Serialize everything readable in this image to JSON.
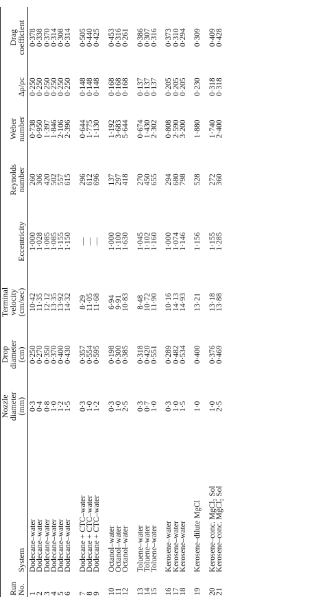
{
  "columns": [
    {
      "line1": "Run",
      "line2": "No."
    },
    {
      "line1": "",
      "line2": "System"
    },
    {
      "line1": "Nozzle",
      "line2": "diameter",
      "line3": "(mm)"
    },
    {
      "line1": "Drop",
      "line2": "diameter",
      "line3": "(cm)"
    },
    {
      "line1": "Terminal",
      "line2": "velocity",
      "line3": "(cm/sec)"
    },
    {
      "line1": "",
      "line2": "Eccentricity"
    },
    {
      "line1": "Reynolds",
      "line2": "number"
    },
    {
      "line1": "Weber",
      "line2": "number"
    },
    {
      "line1": "",
      "line2": "Δρ/ρc"
    },
    {
      "line1": "Drag",
      "line2": "coefficient"
    }
  ],
  "groups": [
    {
      "rows": [
        {
          "run": "1",
          "system": "Dodecane–water",
          "nozzle": "0·3",
          "drop": "0·250",
          "velocity": "10·42",
          "ecc": "1·000",
          "re": "260",
          "we": "0·738",
          "drho": "0·250",
          "cd": "0·378"
        },
        {
          "run": "2",
          "system": "Dodecane–water",
          "nozzle": "0·4",
          "drop": "0·270",
          "velocity": "11·35",
          "ecc": "1·028",
          "re": "306",
          "we": "0·950",
          "drho": "0·250",
          "cd": "0·338"
        },
        {
          "run": "3",
          "system": "Dodecane–water",
          "nozzle": "0·8",
          "drop": "0·350",
          "velocity": "12·12",
          "ecc": "1·085",
          "re": "420",
          "we": "1·397",
          "drho": "0·250",
          "cd": "0·370"
        },
        {
          "run": "4",
          "system": "Dodecane–water",
          "nozzle": "1·0",
          "drop": "0·370",
          "velocity": "13·35",
          "ecc": "1·085",
          "re": "502",
          "we": "1·846",
          "drho": "0·250",
          "cd": "0·314"
        },
        {
          "run": "5",
          "system": "Dodecane–water",
          "nozzle": "1·2",
          "drop": "0·400",
          "velocity": "13·92",
          "ecc": "1·155",
          "re": "557",
          "we": "2·106",
          "drho": "0·250",
          "cd": "0·308"
        },
        {
          "run": "6",
          "system": "Dodecane–water",
          "nozzle": "1·5",
          "drop": "0·430",
          "velocity": "14·32",
          "ecc": "1·150",
          "re": "615",
          "we": "2·396",
          "drho": "0·250",
          "cd": "0·314"
        }
      ]
    },
    {
      "rows": [
        {
          "run": "7",
          "system": "Dodecane + CTC–water",
          "nozzle": "0·3",
          "drop": "0·357",
          "velocity": "8·29",
          "ecc": "—",
          "re": "296",
          "we": "0·644",
          "drho": "0·148",
          "cd": "0·505"
        },
        {
          "run": "8",
          "system": "Dodecane + CTC–water",
          "nozzle": "1·0",
          "drop": "0·554",
          "velocity": "11·05",
          "ecc": "—",
          "re": "612",
          "we": "1·775",
          "drho": "0·148",
          "cd": "0·440"
        },
        {
          "run": "9",
          "system": "Dodecane + CTC–water",
          "nozzle": "1·2",
          "drop": "0·595",
          "velocity": "11·68",
          "ecc": "—",
          "re": "696",
          "we": "1·130",
          "drho": "0·148",
          "cd": "0·425"
        }
      ]
    },
    {
      "rows": [
        {
          "run": "10",
          "system": "Octanol–water",
          "nozzle": "0·3",
          "drop": "0·198",
          "velocity": "6·94",
          "ecc": "1·000",
          "re": "137",
          "we": "1·192",
          "drho": "0·168",
          "cd": "0·453"
        },
        {
          "run": "11",
          "system": "Octanol–water",
          "nozzle": "1·0",
          "drop": "0·300",
          "velocity": "9·91",
          "ecc": "1·100",
          "re": "297",
          "we": "3·683",
          "drho": "0·168",
          "cd": "0·316"
        },
        {
          "run": "12",
          "system": "Octanol–water",
          "nozzle": "2·5",
          "drop": "0·385",
          "velocity": "10·83",
          "ecc": "1·630",
          "re": "418",
          "we": "5·644",
          "drho": "0·168",
          "cd": "0·261"
        }
      ]
    },
    {
      "rows": [
        {
          "run": "13",
          "system": "Toluene–water",
          "nozzle": "0·3",
          "drop": "0·318",
          "velocity": "8·48",
          "ecc": "1·045",
          "re": "270",
          "we": "0·674",
          "drho": "0·137",
          "cd": "0·386"
        },
        {
          "run": "14",
          "system": "Toluene–water",
          "nozzle": "0·7",
          "drop": "0·420",
          "velocity": "10·72",
          "ecc": "1·102",
          "re": "450",
          "we": "1·430",
          "drho": "0·137",
          "cd": "0·307"
        },
        {
          "run": "15",
          "system": "Toluene–water",
          "nozzle": "1·0",
          "drop": "0·551",
          "velocity": "11·90",
          "ecc": "1·160",
          "re": "655",
          "we": "2·302",
          "drho": "0·137",
          "cd": "0·316"
        }
      ]
    },
    {
      "rows": [
        {
          "run": "16",
          "system": "Kerosene–water",
          "nozzle": "0·3",
          "drop": "0·289",
          "velocity": "10·16",
          "ecc": "1·000",
          "re": "294",
          "we": "0·808",
          "drho": "0·205",
          "cd": "0·373"
        },
        {
          "run": "17",
          "system": "Kerosene–water",
          "nozzle": "1·0",
          "drop": "0·482",
          "velocity": "14·13",
          "ecc": "1·074",
          "re": "680",
          "we": "2·590",
          "drho": "0·205",
          "cd": "0·310"
        },
        {
          "run": "18",
          "system": "Kerosene–water",
          "nozzle": "1·5",
          "drop": "0·534",
          "velocity": "14·93",
          "ecc": "1·146",
          "re": "798",
          "we": "3·200",
          "drho": "0·205",
          "cd": "0·294"
        }
      ]
    },
    {
      "rows": [
        {
          "run": "19",
          "system": "Kerosene–dilute MgCl",
          "nozzle": "1·0",
          "drop": "0·400",
          "velocity": "13·21",
          "ecc": "1·156",
          "re": "528",
          "we": "1·880",
          "drho": "0·230",
          "cd": "0·309"
        }
      ]
    },
    {
      "rows": [
        {
          "run": "20",
          "system": "Kerosene–conc. MgCl₂ Sol",
          "nozzle": "1·0",
          "drop": "0·376",
          "velocity": "13·18",
          "ecc": "1·155",
          "re": "272",
          "we": "1·740",
          "drho": "0·318",
          "cd": "0·409"
        },
        {
          "run": "21",
          "system": "Kerosene–conc. MgCl₂ Sol",
          "nozzle": "2·5",
          "drop": "0·469",
          "velocity": "13·88",
          "ecc": "1·285",
          "re": "360",
          "we": "2·400",
          "drho": "0·318",
          "cd": "0·428"
        }
      ]
    }
  ]
}
